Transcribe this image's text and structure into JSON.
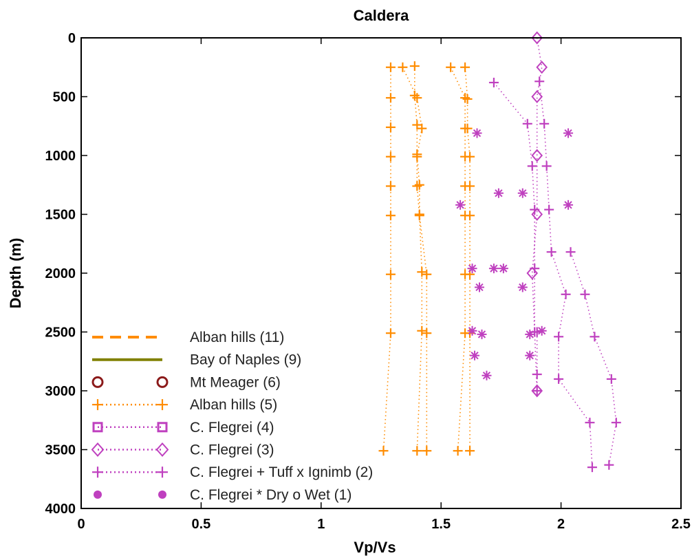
{
  "chart_data": {
    "type": "scatter",
    "title": "Caldera",
    "xlabel": "Vp/Vs",
    "ylabel": "Depth (m)",
    "xlim": [
      0,
      2.5
    ],
    "ylim": [
      4000,
      0
    ],
    "y_reversed": true,
    "x_ticks": [
      "0",
      "0.5",
      "1",
      "1.5",
      "2",
      "2.5"
    ],
    "y_ticks": [
      "0",
      "500",
      "1000",
      "1500",
      "2000",
      "2500",
      "3000",
      "3500",
      "4000"
    ],
    "grid": false,
    "legend_position": "bottom-left",
    "series": [
      {
        "name": "Alban hills (11)",
        "color": "#FF8C00",
        "style": "dashed-line",
        "marker": "none",
        "points": []
      },
      {
        "name": "Bay of Naples (9)",
        "color": "#808000",
        "style": "solid-line",
        "marker": "none",
        "points": []
      },
      {
        "name": "Mt Meager (6)",
        "color": "#8B1A1A",
        "style": "none",
        "marker": "circle-open",
        "points": []
      },
      {
        "name": "Alban hills (5)",
        "color": "#FF8C00",
        "style": "dotted-line",
        "marker": "plus",
        "lines": [
          [
            [
              1.29,
              250
            ],
            [
              1.29,
              510
            ],
            [
              1.29,
              760
            ],
            [
              1.29,
              1010
            ],
            [
              1.29,
              1260
            ],
            [
              1.29,
              1510
            ],
            [
              1.29,
              2010
            ],
            [
              1.29,
              2510
            ],
            [
              1.26,
              3510
            ]
          ],
          [
            [
              1.39,
              240
            ],
            [
              1.39,
              490
            ],
            [
              1.4,
              740
            ],
            [
              1.4,
              990
            ],
            [
              1.41,
              1250
            ],
            [
              1.41,
              1500
            ],
            [
              1.42,
              1990
            ],
            [
              1.42,
              2490
            ],
            [
              1.4,
              3510
            ]
          ],
          [
            [
              1.34,
              250
            ],
            [
              1.4,
              510
            ],
            [
              1.42,
              770
            ],
            [
              1.4,
              1010
            ],
            [
              1.4,
              1260
            ],
            [
              1.41,
              1510
            ],
            [
              1.44,
              2010
            ],
            [
              1.44,
              2510
            ],
            [
              1.44,
              3510
            ]
          ],
          [
            [
              1.54,
              250
            ],
            [
              1.6,
              510
            ],
            [
              1.6,
              770
            ],
            [
              1.6,
              1010
            ],
            [
              1.6,
              1260
            ],
            [
              1.6,
              1510
            ],
            [
              1.6,
              2010
            ],
            [
              1.6,
              2510
            ],
            [
              1.57,
              3510
            ]
          ],
          [
            [
              1.6,
              250
            ],
            [
              1.61,
              520
            ],
            [
              1.61,
              770
            ],
            [
              1.62,
              1010
            ],
            [
              1.62,
              1260
            ],
            [
              1.62,
              1510
            ],
            [
              1.62,
              2010
            ],
            [
              1.62,
              2510
            ],
            [
              1.62,
              3510
            ]
          ]
        ]
      },
      {
        "name": "C. Flegrei (4)",
        "color": "#BF40BF",
        "style": "dotted-line",
        "marker": "square-open",
        "points": []
      },
      {
        "name": "C. Flegrei (3)",
        "color": "#BF40BF",
        "style": "dotted-line",
        "marker": "diamond-open",
        "lines": [
          [
            [
              1.9,
              0
            ],
            [
              1.92,
              250
            ],
            [
              1.9,
              500
            ],
            [
              1.9,
              1000
            ],
            [
              1.9,
              1500
            ],
            [
              1.88,
              2000
            ],
            [
              1.9,
              3000
            ]
          ]
        ]
      },
      {
        "name": "C. Flegrei + Tuff x Ignimb (2)",
        "color": "#BF40BF",
        "style": "dotted-line",
        "marker": "plus",
        "lines": [
          [
            [
              1.72,
              380
            ],
            [
              1.86,
              730
            ],
            [
              1.88,
              1090
            ],
            [
              1.89,
              1460
            ],
            [
              1.89,
              1960
            ],
            [
              1.89,
              2500
            ],
            [
              1.9,
              2500
            ],
            [
              1.9,
              2860
            ],
            [
              1.9,
              3000
            ]
          ],
          [
            [
              1.91,
              370
            ],
            [
              1.93,
              730
            ],
            [
              1.94,
              1090
            ],
            [
              1.95,
              1460
            ],
            [
              1.96,
              1820
            ],
            [
              2.02,
              2180
            ],
            [
              1.99,
              2540
            ],
            [
              1.99,
              2900
            ],
            [
              2.12,
              3270
            ],
            [
              2.13,
              3650
            ]
          ],
          [
            [
              2.04,
              1820
            ],
            [
              2.1,
              2180
            ],
            [
              2.14,
              2540
            ],
            [
              2.21,
              2900
            ],
            [
              2.23,
              3270
            ],
            [
              2.2,
              3630
            ]
          ]
        ]
      },
      {
        "name": "C. Flegrei * Dry o Wet (1)",
        "color": "#BF40BF",
        "style": "none",
        "marker": "asterisk",
        "points": [
          [
            1.65,
            810
          ],
          [
            2.03,
            810
          ],
          [
            1.74,
            1320
          ],
          [
            1.84,
            1320
          ],
          [
            1.58,
            1420
          ],
          [
            2.03,
            1420
          ],
          [
            1.63,
            1960
          ],
          [
            1.72,
            1960
          ],
          [
            1.76,
            1960
          ],
          [
            1.66,
            2120
          ],
          [
            1.84,
            2120
          ],
          [
            1.63,
            2490
          ],
          [
            1.67,
            2520
          ],
          [
            1.87,
            2520
          ],
          [
            1.92,
            2490
          ],
          [
            1.64,
            2700
          ],
          [
            1.87,
            2700
          ],
          [
            1.69,
            2870
          ]
        ]
      }
    ]
  }
}
